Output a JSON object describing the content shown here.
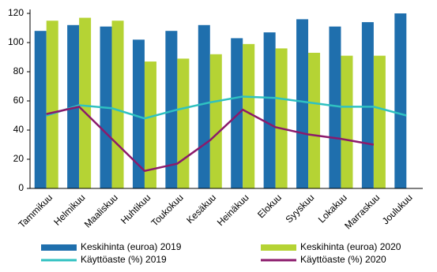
{
  "chart_data": {
    "type": "bar-line",
    "categories": [
      "Tammikuu",
      "Helmikuu",
      "Maaliskuu",
      "Huhtikuu",
      "Toukokuu",
      "Kesäkuu",
      "Heinäkuu",
      "Elokuu",
      "Syyskuu",
      "Lokakuu",
      "Marraskuu",
      "Joulukuu"
    ],
    "series": [
      {
        "name": "Keskihinta (euroa) 2019",
        "kind": "bar",
        "color": "#1f6fad",
        "values": [
          108,
          112,
          111,
          102,
          108,
          112,
          103,
          107,
          116,
          111,
          114,
          120
        ]
      },
      {
        "name": "Keskihinta (euroa) 2020",
        "kind": "bar",
        "color": "#b5d334",
        "values": [
          115,
          117,
          115,
          87,
          89,
          92,
          99,
          96,
          93,
          91,
          91,
          null
        ]
      },
      {
        "name": "Käyttöaste (%) 2019",
        "kind": "line",
        "color": "#2fc1c1",
        "values": [
          50,
          57,
          55,
          48,
          54,
          59,
          63,
          62,
          59,
          56,
          56,
          50
        ]
      },
      {
        "name": "Käyttöaste (%) 2020",
        "kind": "line",
        "color": "#8b1a6b",
        "values": [
          51,
          56,
          34,
          12,
          17,
          33,
          54,
          42,
          37,
          34,
          30,
          null
        ]
      }
    ],
    "ylim": [
      0,
      120
    ],
    "yticks": [
      0,
      20,
      40,
      60,
      80,
      100,
      120
    ],
    "grid": false
  }
}
